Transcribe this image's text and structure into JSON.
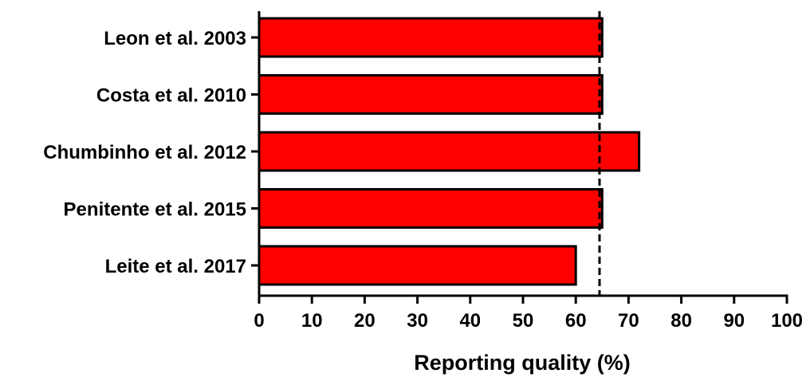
{
  "chart_data": {
    "type": "bar",
    "orientation": "horizontal",
    "categories": [
      "Leon et al. 2003",
      "Costa et al. 2010",
      "Chumbinho et al. 2012",
      "Penitente et al. 2015",
      "Leite et al. 2017"
    ],
    "values": [
      65,
      65,
      72,
      65,
      60
    ],
    "reference_line": {
      "value": 64.5,
      "style": "dashed"
    },
    "xlabel": "Reporting quality (%)",
    "ylabel": "",
    "title": "",
    "xlim": [
      0,
      100
    ],
    "xticks": [
      "0",
      "10",
      "20",
      "30",
      "40",
      "50",
      "60",
      "70",
      "80",
      "90",
      "100"
    ],
    "grid": false,
    "legend": "none",
    "colors": {
      "bar_fill": "#ff0000",
      "bar_stroke": "#000000",
      "axis": "#000000",
      "reference_line": "#000000"
    }
  }
}
